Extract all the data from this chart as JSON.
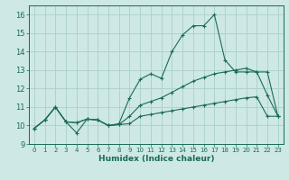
{
  "title": "",
  "xlabel": "Humidex (Indice chaleur)",
  "background_color": "#cde8e5",
  "grid_color": "#aacfcc",
  "line_color": "#1a6b5a",
  "xlim": [
    -0.5,
    23.5
  ],
  "ylim": [
    9,
    16.5
  ],
  "yticks": [
    9,
    10,
    11,
    12,
    13,
    14,
    15,
    16
  ],
  "xticks": [
    0,
    1,
    2,
    3,
    4,
    5,
    6,
    7,
    8,
    9,
    10,
    11,
    12,
    13,
    14,
    15,
    16,
    17,
    18,
    19,
    20,
    21,
    22,
    23
  ],
  "line1_y": [
    9.85,
    10.3,
    11.0,
    10.2,
    10.15,
    10.35,
    10.3,
    10.0,
    10.05,
    10.1,
    10.5,
    10.6,
    10.7,
    10.8,
    10.9,
    11.0,
    11.1,
    11.2,
    11.3,
    11.4,
    11.5,
    11.55,
    10.5,
    10.5
  ],
  "line2_y": [
    9.85,
    10.3,
    11.0,
    10.2,
    9.6,
    10.35,
    10.3,
    10.0,
    10.1,
    11.5,
    12.5,
    12.8,
    12.55,
    14.0,
    14.9,
    15.4,
    15.4,
    16.0,
    13.55,
    12.9,
    12.9,
    12.9,
    11.65,
    10.5
  ],
  "line3_y": [
    9.85,
    10.3,
    11.0,
    10.2,
    10.15,
    10.35,
    10.3,
    10.0,
    10.05,
    10.5,
    11.1,
    11.3,
    11.5,
    11.8,
    12.1,
    12.4,
    12.6,
    12.8,
    12.9,
    13.0,
    13.1,
    12.9,
    12.9,
    10.5
  ]
}
